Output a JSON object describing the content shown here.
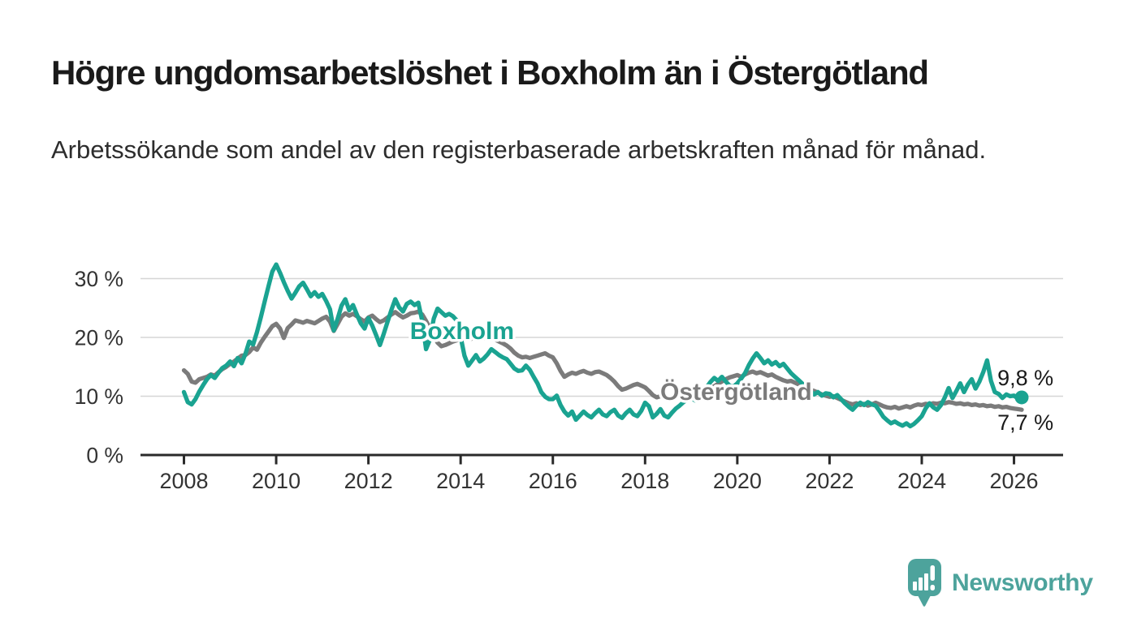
{
  "header": {
    "title": "Högre ungdomsarbetslöshet i Boxholm än i Östergötland",
    "subtitle": "Arbetssökande som andel av den registerbaserade arbetskraften månad för månad."
  },
  "chart_data": {
    "type": "line",
    "unit": "%",
    "x_start_year": 2008,
    "x_frequency": "monthly",
    "xlim": [
      2007.06,
      2027.06
    ],
    "ylim": [
      0,
      33
    ],
    "grid": "horizontal",
    "xticks": [
      2008,
      2010,
      2012,
      2014,
      2016,
      2018,
      2020,
      2022,
      2024,
      2026
    ],
    "yticks": [
      {
        "value": 0,
        "label": "0 %"
      },
      {
        "value": 10,
        "label": "10 %"
      },
      {
        "value": 20,
        "label": "20 %"
      },
      {
        "value": 30,
        "label": "30 %"
      }
    ],
    "series": [
      {
        "name": "Östergötland",
        "color": "#7b7b7b",
        "label": {
          "text": "Östergötland",
          "x_year": 2018.33,
          "y_pct": 9.4
        },
        "end_label": "7,7 %",
        "end_dot": false,
        "values": [
          14.4,
          13.8,
          12.5,
          12.3,
          12.9,
          13.1,
          13.3,
          13.7,
          13.5,
          14.1,
          14.6,
          15.0,
          15.5,
          15.9,
          16.4,
          16.9,
          17.0,
          17.5,
          18.3,
          17.9,
          19.1,
          20.1,
          21.0,
          21.9,
          22.3,
          21.5,
          19.9,
          21.6,
          22.2,
          22.9,
          22.7,
          22.5,
          22.8,
          22.6,
          22.4,
          22.8,
          23.2,
          23.5,
          22.7,
          21.1,
          22.3,
          23.5,
          24.1,
          23.7,
          24.0,
          23.6,
          23.1,
          22.7,
          23.4,
          23.7,
          23.1,
          22.6,
          22.9,
          23.4,
          23.9,
          24.3,
          23.8,
          23.4,
          23.7,
          24.1,
          24.2,
          24.4,
          23.9,
          22.8,
          21.6,
          20.3,
          19.1,
          18.5,
          18.7,
          19.0,
          19.3,
          19.5,
          19.7,
          19.9,
          19.6,
          19.8,
          20.0,
          19.7,
          19.9,
          20.1,
          19.8,
          19.6,
          19.3,
          19.0,
          18.6,
          18.1,
          17.4,
          16.9,
          16.6,
          16.7,
          16.5,
          16.7,
          16.9,
          17.1,
          17.3,
          16.9,
          16.6,
          15.6,
          14.3,
          13.3,
          13.7,
          14.0,
          13.8,
          14.1,
          14.3,
          14.0,
          13.8,
          14.1,
          14.2,
          13.9,
          13.6,
          13.1,
          12.5,
          11.7,
          11.1,
          11.3,
          11.6,
          11.9,
          12.1,
          11.8,
          11.5,
          10.9,
          10.2,
          9.8,
          10.0,
          10.3,
          9.9,
          9.7,
          10.0,
          10.4,
          10.2,
          10.5,
          10.7,
          10.4,
          10.9,
          11.1,
          10.8,
          11.3,
          11.7,
          12.1,
          12.5,
          12.9,
          13.2,
          13.4,
          13.6,
          13.3,
          13.7,
          14.0,
          14.2,
          13.9,
          14.1,
          13.8,
          13.5,
          13.7,
          13.3,
          13.0,
          12.7,
          12.5,
          12.6,
          12.3,
          12.0,
          11.7,
          11.4,
          11.1,
          10.9,
          10.6,
          10.3,
          10.1,
          9.9,
          10.0,
          9.7,
          9.4,
          9.1,
          8.8,
          8.6,
          8.8,
          8.5,
          8.7,
          8.4,
          8.6,
          8.9,
          8.6,
          8.3,
          8.1,
          8.0,
          8.2,
          7.9,
          8.1,
          8.3,
          8.1,
          8.4,
          8.6,
          8.5,
          8.7,
          8.6,
          8.8,
          8.7,
          8.9,
          8.8,
          9.0,
          8.9,
          8.7,
          8.8,
          8.6,
          8.7,
          8.5,
          8.6,
          8.4,
          8.5,
          8.3,
          8.4,
          8.2,
          8.3,
          8.1,
          8.2,
          8.0,
          7.9,
          7.8,
          7.7
        ]
      },
      {
        "name": "Boxholm",
        "color": "#1aa391",
        "label": {
          "text": "Boxholm",
          "x_year": 2012.9,
          "y_pct": 19.7
        },
        "end_label": "9,8 %",
        "end_dot": true,
        "values": [
          10.7,
          9.0,
          8.6,
          9.5,
          10.8,
          11.9,
          12.9,
          13.6,
          13.1,
          14.0,
          14.8,
          15.2,
          15.9,
          15.1,
          16.5,
          15.6,
          17.2,
          19.3,
          18.8,
          20.9,
          23.4,
          26.1,
          28.7,
          31.2,
          32.4,
          31.0,
          29.4,
          27.9,
          26.6,
          27.6,
          28.7,
          29.3,
          28.2,
          27.0,
          27.7,
          26.9,
          27.4,
          26.2,
          24.8,
          21.2,
          23.2,
          25.4,
          26.5,
          24.6,
          25.5,
          23.9,
          22.4,
          21.5,
          23.3,
          22.0,
          20.4,
          18.7,
          20.6,
          22.7,
          24.7,
          26.5,
          25.1,
          24.4,
          25.7,
          26.1,
          25.5,
          25.9,
          22.8,
          18.0,
          19.6,
          23.2,
          24.9,
          24.3,
          23.7,
          24.0,
          23.6,
          22.9,
          20.1,
          16.9,
          15.2,
          16.1,
          17.0,
          15.9,
          16.4,
          17.1,
          18.0,
          17.5,
          17.0,
          16.6,
          16.3,
          15.5,
          14.7,
          14.3,
          14.4,
          15.2,
          14.5,
          13.3,
          12.2,
          10.7,
          9.9,
          9.5,
          9.5,
          10.1,
          8.5,
          7.4,
          6.7,
          7.4,
          6.0,
          6.7,
          7.4,
          6.8,
          6.4,
          7.1,
          7.7,
          6.9,
          6.6,
          7.3,
          7.7,
          6.7,
          6.3,
          7.1,
          7.7,
          6.9,
          6.6,
          7.5,
          8.9,
          8.3,
          6.4,
          7.0,
          7.8,
          6.7,
          6.4,
          7.2,
          7.9,
          8.4,
          9.0,
          9.4,
          9.7,
          9.3,
          10.1,
          10.7,
          11.5,
          12.4,
          13.1,
          12.6,
          13.3,
          12.5,
          11.8,
          11.6,
          12.2,
          13.0,
          13.9,
          15.3,
          16.4,
          17.3,
          16.5,
          15.6,
          16.1,
          15.4,
          15.8,
          15.1,
          15.5,
          14.7,
          13.9,
          13.3,
          12.7,
          12.1,
          11.5,
          10.9,
          10.3,
          10.7,
          10.1,
          10.5,
          10.4,
          9.8,
          10.2,
          9.5,
          8.8,
          8.2,
          7.7,
          8.4,
          8.9,
          8.5,
          9.0,
          8.6,
          8.4,
          7.5,
          6.5,
          5.9,
          5.4,
          5.7,
          5.3,
          5.0,
          5.4,
          4.9,
          5.3,
          5.9,
          6.6,
          7.9,
          8.8,
          8.1,
          7.7,
          8.5,
          9.8,
          11.4,
          9.7,
          10.9,
          12.2,
          10.7,
          12.0,
          12.9,
          11.3,
          12.5,
          14.1,
          16.1,
          12.6,
          10.7,
          10.4,
          9.7,
          10.3,
          10.0,
          10.1,
          9.6,
          9.8
        ]
      }
    ],
    "annotations": [
      {
        "text": "9,8 %",
        "x_year": 2025.64,
        "y_pct": 11.86
      },
      {
        "text": "7,7 %",
        "x_year": 2025.64,
        "y_pct": 4.28
      }
    ]
  },
  "colors": {
    "axis": "#2a2a2a",
    "gridline": "#d6d6d6",
    "tick_text": "#333333",
    "annotation_text": "#1a1a1a"
  },
  "logo": {
    "brand": "Newsworthy",
    "color": "#4da39c",
    "icon": "newsworthy-pin-barchart-icon"
  }
}
